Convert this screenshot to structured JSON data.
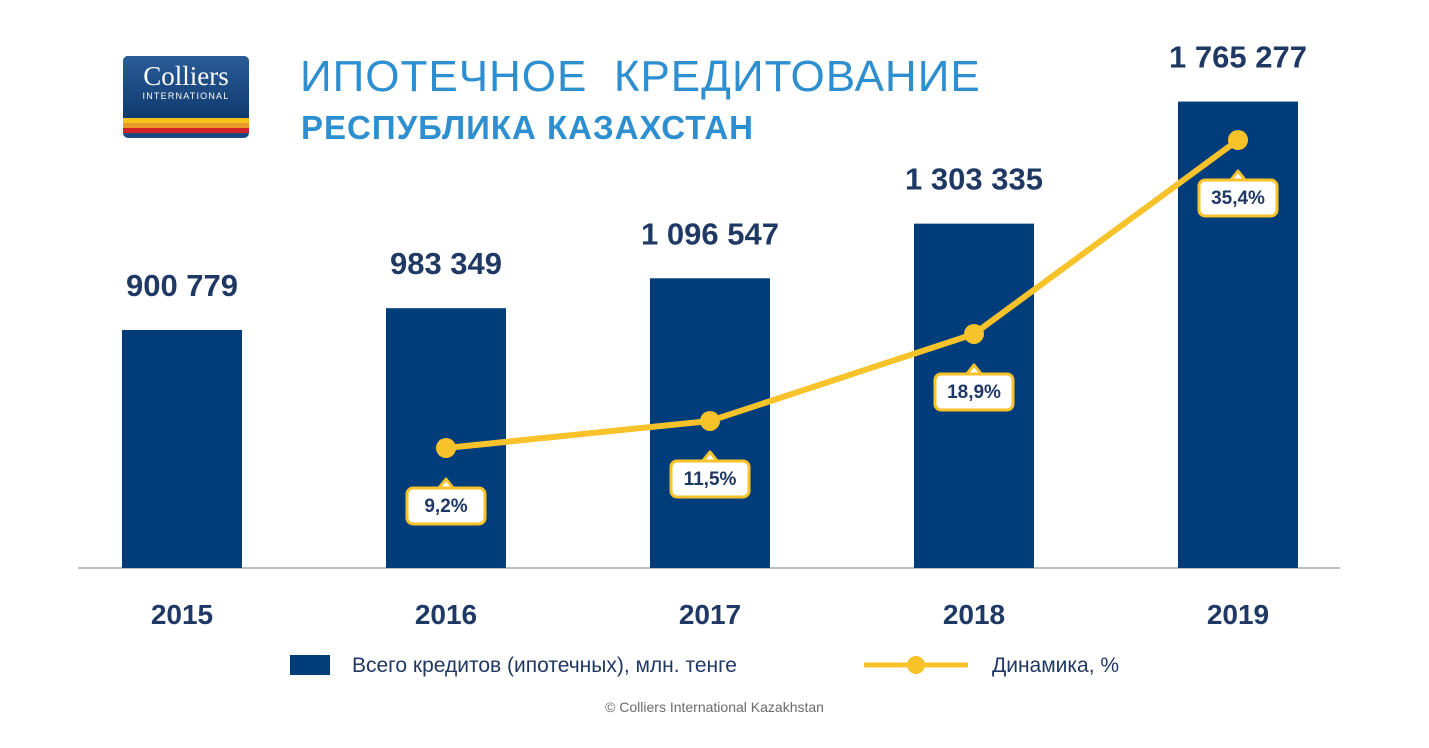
{
  "header": {
    "logo_name": "Colliers",
    "logo_sub": "INTERNATIONAL",
    "title": "ИПОТЕЧНОЕ  КРЕДИТОВАНИЕ",
    "subtitle": "РЕСПУБЛИКА КАЗАХСТАН"
  },
  "colors": {
    "bar": "#003d7a",
    "line": "#f7c22a",
    "title": "#2e8fd0",
    "text": "#1f3864",
    "axis": "#c0c0c0"
  },
  "chart_data": {
    "type": "bar",
    "categories": [
      "2015",
      "2016",
      "2017",
      "2018",
      "2019"
    ],
    "series": [
      {
        "name": "Всего кредитов (ипотечных), млн. тенге",
        "type": "bar",
        "values": [
          900779,
          983349,
          1096547,
          1303335,
          1765277
        ],
        "labels": [
          "900 779",
          "983 349",
          "1 096 547",
          "1 303 335",
          "1 765 277"
        ]
      },
      {
        "name": "Динамика, %",
        "type": "line",
        "values": [
          null,
          9.2,
          11.5,
          18.9,
          35.4
        ],
        "labels": [
          "",
          "9,2%",
          "11,5%",
          "18,9%",
          "35,4%"
        ]
      }
    ],
    "grid": false,
    "legend_position": "bottom"
  },
  "legend": {
    "bar_label": "Всего кредитов (ипотечных), млн. тенге",
    "line_label": "Динамика, %"
  },
  "footer": {
    "copyright": "© Colliers International Kazakhstan"
  }
}
